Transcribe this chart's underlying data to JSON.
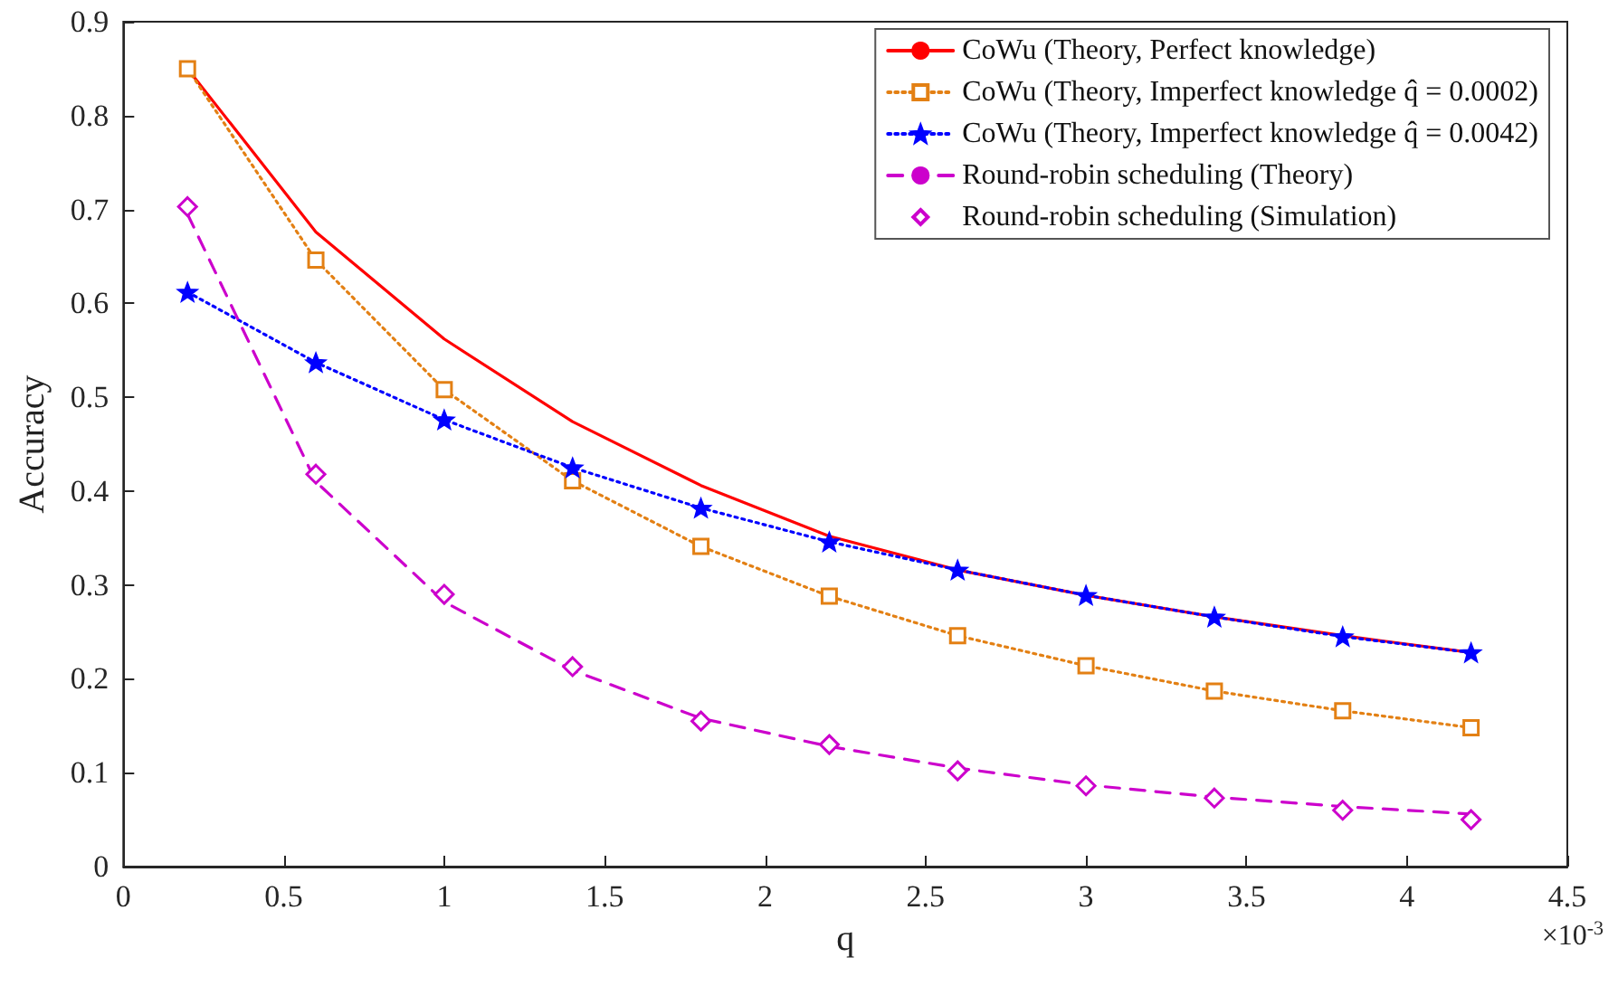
{
  "chart_data": {
    "type": "line",
    "xlabel": "q",
    "ylabel": "Accuracy",
    "annotations": [
      "×10$^{-3}$"
    ],
    "x": [
      0.2,
      0.6,
      1.0,
      1.4,
      1.8,
      2.2,
      2.6,
      3.0,
      3.4,
      3.8,
      4.2
    ],
    "xlim": [
      0,
      4.5
    ],
    "xticks": [
      0,
      0.5,
      1,
      1.5,
      2,
      2.5,
      3,
      3.5,
      4,
      4.5
    ],
    "ylim": [
      0,
      0.9
    ],
    "yticks": [
      0,
      0.1,
      0.2,
      0.3,
      0.4,
      0.5,
      0.6,
      0.7,
      0.8,
      0.9
    ],
    "grid": false,
    "legend": "top right",
    "series": [
      {
        "name": "CoWu (Theory, Perfect knowledge)",
        "color": "#ff0000",
        "marker": "none",
        "line_style": "solid",
        "values": [
          0.85,
          0.676,
          0.562,
          0.474,
          0.406,
          0.352,
          0.316,
          0.289,
          0.266,
          0.246,
          0.228
        ]
      },
      {
        "name": "CoWu (Theory, Imperfect knowledge q̂ = 0.0002)",
        "color": "#e38014",
        "marker": "square",
        "line_style": "dotted",
        "values": [
          0.85,
          0.646,
          0.508,
          0.411,
          0.341,
          0.288,
          0.246,
          0.214,
          0.187,
          0.166,
          0.148
        ]
      },
      {
        "name": "CoWu (Theory, Imperfect knowledge q̂ = 0.0042)",
        "color": "#0000ff",
        "marker": "star",
        "line_style": "dotted",
        "values": [
          0.612,
          0.537,
          0.476,
          0.425,
          0.382,
          0.346,
          0.316,
          0.289,
          0.266,
          0.245,
          0.228
        ]
      },
      {
        "name": "Round-robin scheduling (Theory)",
        "color": "#cc00cc",
        "marker": "none",
        "line_style": "dashed",
        "values": [
          0.695,
          0.41,
          0.282,
          0.209,
          0.158,
          0.128,
          0.105,
          0.087,
          0.074,
          0.064,
          0.056
        ]
      },
      {
        "name": "Round-robin scheduling (Simulation)",
        "type": "scatter",
        "color": "#cc00cc",
        "marker": "diamond",
        "values": [
          0.703,
          0.418,
          0.29,
          0.213,
          0.155,
          0.13,
          0.102,
          0.086,
          0.073,
          0.06,
          0.05
        ]
      }
    ]
  }
}
